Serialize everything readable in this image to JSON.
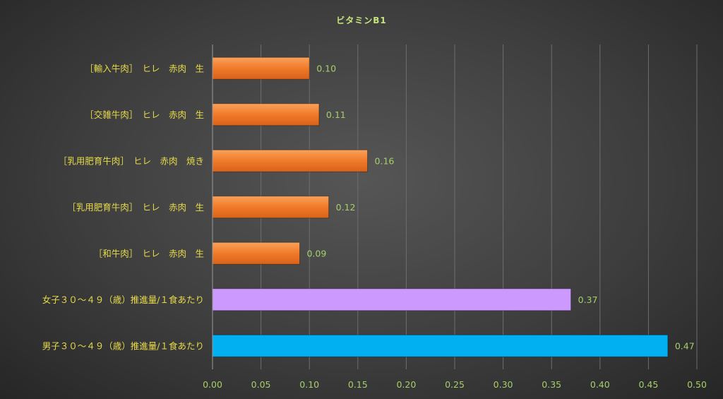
{
  "chart_data": {
    "type": "bar",
    "orientation": "horizontal",
    "title": "ビタミンB1",
    "categories": [
      "［輸入牛肉］　ヒレ　赤肉　生",
      "［交雑牛肉］　ヒレ　赤肉　生",
      "［乳用肥育牛肉］　ヒレ　赤肉　焼き",
      "［乳用肥育牛肉］　ヒレ　赤肉　生",
      "［和牛肉］　ヒレ　赤肉　生",
      "女子３０～４９（歳）推進量/１食あたり",
      "男子３０～４９（歳）推進量/１食あたり"
    ],
    "values": [
      0.1,
      0.11,
      0.16,
      0.12,
      0.09,
      0.37,
      0.47
    ],
    "value_labels": [
      "0.10",
      "0.11",
      "0.16",
      "0.12",
      "0.09",
      "0.37",
      "0.47"
    ],
    "bar_colors": [
      "#f07a2a",
      "#f07a2a",
      "#f07a2a",
      "#f07a2a",
      "#f07a2a",
      "#cc99ff",
      "#00b0f0"
    ],
    "xlim": [
      0,
      0.5
    ],
    "xticks": [
      0,
      0.05,
      0.1,
      0.15,
      0.2,
      0.25,
      0.3,
      0.35,
      0.4,
      0.45,
      0.5
    ],
    "xtick_labels": [
      "0.00",
      "0.05",
      "0.10",
      "0.15",
      "0.20",
      "0.25",
      "0.30",
      "0.35",
      "0.40",
      "0.45",
      "0.50"
    ],
    "xlabel": "",
    "ylabel": "",
    "grid": "vertical",
    "legend": "none",
    "colors": {
      "title": "#c5e57a",
      "category_text": "#e8dc4a",
      "value_text": "#a6cf6a",
      "gridline": "#6e6e6e",
      "axis": "#9a9a9a"
    }
  }
}
